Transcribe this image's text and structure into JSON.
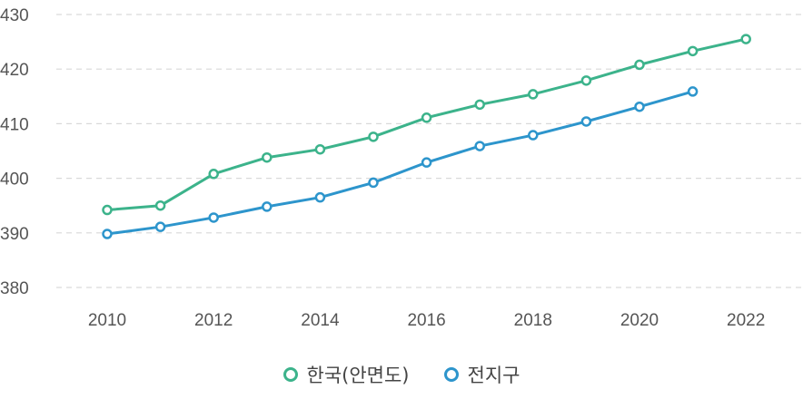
{
  "chart_data": {
    "type": "line",
    "x": [
      2010,
      2011,
      2012,
      2013,
      2014,
      2015,
      2016,
      2017,
      2018,
      2019,
      2020,
      2021,
      2022
    ],
    "x_ticks": [
      "2010",
      "2012",
      "2014",
      "2016",
      "2018",
      "2020",
      "2022"
    ],
    "y_ticks": [
      "380",
      "390",
      "400",
      "410",
      "420",
      "430"
    ],
    "ylim": [
      380,
      430
    ],
    "grid": true,
    "legend_position": "bottom",
    "series": [
      {
        "name": "한국(안면도)",
        "color": "#3cb38b",
        "values": [
          394.2,
          395.0,
          400.8,
          403.8,
          405.3,
          407.6,
          411.1,
          413.5,
          415.4,
          417.9,
          420.8,
          423.3,
          425.5
        ]
      },
      {
        "name": "전지구",
        "color": "#2d95cc",
        "values": [
          389.8,
          391.1,
          392.8,
          394.8,
          396.5,
          399.2,
          402.9,
          405.9,
          407.9,
          410.4,
          413.1,
          415.9,
          null
        ]
      }
    ]
  }
}
